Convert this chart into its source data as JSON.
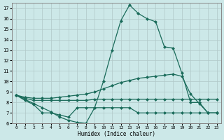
{
  "xlabel": "Humidex (Indice chaleur)",
  "x_values": [
    0,
    1,
    2,
    3,
    4,
    5,
    6,
    7,
    8,
    9,
    10,
    11,
    12,
    13,
    14,
    15,
    16,
    17,
    18,
    19,
    20,
    21,
    22,
    23
  ],
  "line_main": [
    8.7,
    8.3,
    7.9,
    7.5,
    7.1,
    6.6,
    6.3,
    6.1,
    6.0,
    7.5,
    10.0,
    13.0,
    15.8,
    17.3,
    16.5,
    16.0,
    15.7,
    13.3,
    13.2,
    10.8,
    8.0,
    8.0,
    7.0,
    7.0
  ],
  "line_upper": [
    8.7,
    8.5,
    8.4,
    8.4,
    8.4,
    8.5,
    8.6,
    8.7,
    8.8,
    9.0,
    9.3,
    9.6,
    9.9,
    10.1,
    10.3,
    10.4,
    10.5,
    10.6,
    10.7,
    10.5,
    8.8,
    7.9,
    7.0,
    7.0
  ],
  "line_mid": [
    8.7,
    8.4,
    8.2,
    8.2,
    8.2,
    8.2,
    8.2,
    8.2,
    8.2,
    8.3,
    8.3,
    8.3,
    8.3,
    8.3,
    8.3,
    8.3,
    8.3,
    8.3,
    8.3,
    8.3,
    8.3,
    8.3,
    8.3,
    8.3
  ],
  "line_lower": [
    8.7,
    8.2,
    7.8,
    7.0,
    7.0,
    6.8,
    6.6,
    7.5,
    7.5,
    7.5,
    7.5,
    7.5,
    7.5,
    7.5,
    7.0,
    7.0,
    7.0,
    7.0,
    7.0,
    7.0,
    7.0,
    7.0,
    7.0,
    7.0
  ],
  "yticks": [
    6,
    7,
    8,
    9,
    10,
    11,
    12,
    13,
    14,
    15,
    16,
    17
  ],
  "xticks": [
    0,
    1,
    2,
    3,
    4,
    5,
    6,
    7,
    8,
    9,
    10,
    11,
    12,
    13,
    14,
    15,
    16,
    17,
    18,
    19,
    20,
    21,
    22,
    23
  ],
  "line_color": "#1a6b5a",
  "bg_color": "#cce8e8",
  "grid_color": "#b0c8c8"
}
